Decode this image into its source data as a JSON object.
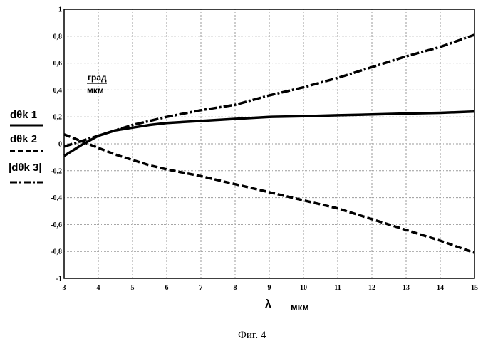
{
  "chart_data": {
    "type": "line",
    "xlabel": "λ",
    "xlabel_unit": "мкм",
    "ylabel_unit_top": "град",
    "ylabel_unit_bottom": "мкм",
    "xlim": [
      3,
      15
    ],
    "ylim": [
      -1,
      1
    ],
    "grid": true,
    "x_ticks": [
      "3",
      "4",
      "5",
      "6",
      "7",
      "8",
      "9",
      "10",
      "11",
      "12",
      "13",
      "14",
      "15"
    ],
    "y_ticks": [
      "1",
      "0,8",
      "0,6",
      "0,4",
      "0,2",
      "0",
      "-0,2",
      "-0,4",
      "-0,6",
      "-0,8",
      "-1"
    ],
    "legend": [
      {
        "name": "dθk1",
        "style": "solid",
        "text": "dθk 1"
      },
      {
        "name": "dθk2",
        "style": "dashed",
        "text": "dθk 2"
      },
      {
        "name": "|dθk3|",
        "style": "dashdot",
        "text": "|dθk 3|"
      }
    ],
    "x": [
      3,
      3.5,
      4,
      4.5,
      5,
      5.5,
      6,
      7,
      8,
      9,
      10,
      11,
      12,
      13,
      14,
      15
    ],
    "series": [
      {
        "name": "dθk1",
        "style": "solid",
        "values": [
          -0.09,
          -0.01,
          0.06,
          0.1,
          0.12,
          0.14,
          0.155,
          0.17,
          0.185,
          0.2,
          0.205,
          0.212,
          0.218,
          0.225,
          0.23,
          0.24
        ]
      },
      {
        "name": "dθk2",
        "style": "dashed",
        "values": [
          0.07,
          0.02,
          -0.03,
          -0.08,
          -0.12,
          -0.16,
          -0.19,
          -0.24,
          -0.3,
          -0.36,
          -0.42,
          -0.48,
          -0.56,
          -0.64,
          -0.72,
          -0.81
        ]
      },
      {
        "name": "|dθk3|",
        "style": "dashdot",
        "values": [
          -0.02,
          0.02,
          0.06,
          0.1,
          0.14,
          0.17,
          0.2,
          0.25,
          0.29,
          0.36,
          0.42,
          0.49,
          0.57,
          0.65,
          0.72,
          0.81
        ]
      }
    ]
  },
  "caption": "Фиг. 4"
}
